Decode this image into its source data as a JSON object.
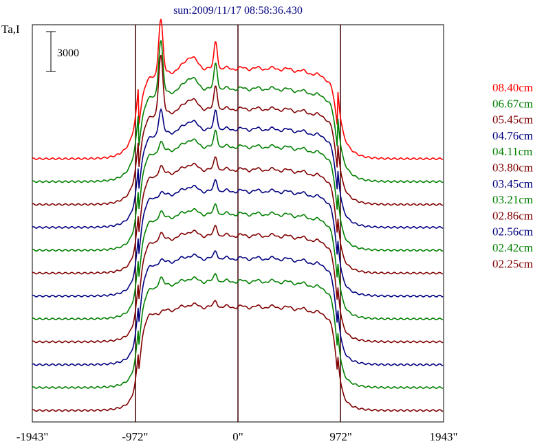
{
  "chart_data": {
    "type": "line",
    "title": "sun:2009/11/17 08:58:36.430",
    "ylabel": "Ta,I",
    "scale_bar_label": "3000",
    "scale_bar_value": 3000,
    "x_ticks": [
      {
        "value": -1943,
        "label": "-1943\""
      },
      {
        "value": -972,
        "label": "-972\""
      },
      {
        "value": 0,
        "label": "0\""
      },
      {
        "value": 972,
        "label": "972\""
      },
      {
        "value": 1943,
        "label": "1943\""
      }
    ],
    "xlim": [
      -1943,
      1943
    ],
    "vertical_markers": [
      -972,
      0,
      972
    ],
    "grid": false,
    "legend_placement": "right",
    "stacked_offsets": true,
    "series": [
      {
        "name": "08.40cm",
        "color": "#ff0000",
        "base": 0,
        "peak": 11000,
        "bump": 2100,
        "flat": 6800,
        "roll": 2100,
        "slope": 3200
      },
      {
        "name": "06.67cm",
        "color": "#008000",
        "base": 0,
        "peak": 11100,
        "bump": 2000,
        "flat": 7000,
        "roll": 2000,
        "slope": 2800
      },
      {
        "name": "05.45cm",
        "color": "#800000",
        "base": 0,
        "peak": 11700,
        "bump": 1800,
        "flat": 7200,
        "roll": 1900,
        "slope": 2400
      },
      {
        "name": "04.76cm",
        "color": "#000080",
        "base": 0,
        "peak": 9300,
        "bump": 1500,
        "flat": 7400,
        "roll": 1900,
        "slope": 2100
      },
      {
        "name": "04.11cm",
        "color": "#008000",
        "base": 0,
        "peak": 8600,
        "bump": 1300,
        "flat": 7800,
        "roll": 1900,
        "slope": 1900
      },
      {
        "name": "03.80cm",
        "color": "#800000",
        "base": 0,
        "peak": 8500,
        "bump": 1000,
        "flat": 7800,
        "roll": 1900,
        "slope": 1800
      },
      {
        "name": "03.45cm",
        "color": "#000080",
        "base": 0,
        "peak": 8200,
        "bump": 900,
        "flat": 7900,
        "roll": 1800,
        "slope": 1800
      },
      {
        "name": "03.21cm",
        "color": "#008000",
        "base": 0,
        "peak": 8500,
        "bump": 800,
        "flat": 7900,
        "roll": 1800,
        "slope": 1800
      },
      {
        "name": "02.86cm",
        "color": "#800000",
        "base": 0,
        "peak": 8600,
        "bump": 800,
        "flat": 8000,
        "roll": 1800,
        "slope": 1700
      },
      {
        "name": "02.56cm",
        "color": "#000080",
        "base": 0,
        "peak": 8300,
        "bump": 600,
        "flat": 8000,
        "roll": 1800,
        "slope": 1700
      },
      {
        "name": "02.42cm",
        "color": "#008000",
        "base": 0,
        "peak": 8700,
        "bump": 600,
        "flat": 8000,
        "roll": 1800,
        "slope": 1700
      },
      {
        "name": "02.25cm",
        "color": "#800000",
        "base": 0,
        "peak": 7800,
        "bump": 500,
        "flat": 7800,
        "roll": 1800,
        "slope": 1700
      }
    ]
  }
}
